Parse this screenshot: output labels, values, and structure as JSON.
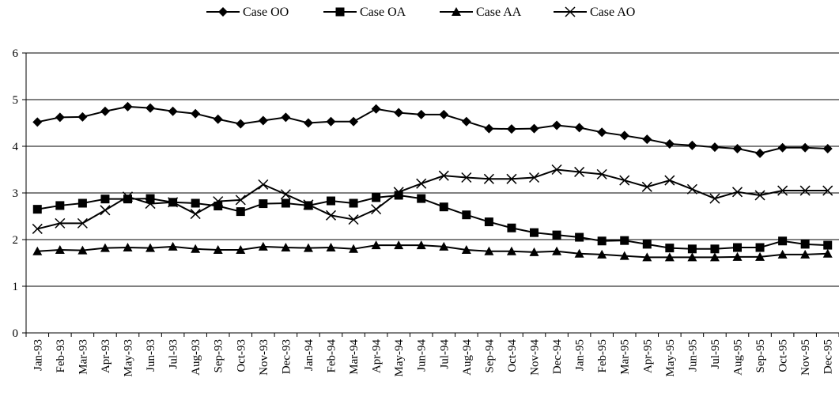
{
  "chart_data": {
    "type": "line",
    "title": "",
    "xlabel": "",
    "ylabel": "",
    "ylim": [
      0,
      6
    ],
    "yticks": [
      0,
      1,
      2,
      3,
      4,
      5,
      6
    ],
    "grid": "horizontal",
    "legend_position": "top-center",
    "categories": [
      "Jan-93",
      "Feb-93",
      "Mar-93",
      "Apr-93",
      "May-93",
      "Jun-93",
      "Jul-93",
      "Aug-93",
      "Sep-93",
      "Oct-93",
      "Nov-93",
      "Dec-93",
      "Jan-94",
      "Feb-94",
      "Mar-94",
      "Apr-94",
      "May-94",
      "Jun-94",
      "Jul-94",
      "Aug-94",
      "Sep-94",
      "Oct-94",
      "Nov-94",
      "Dec-94",
      "Jan-95",
      "Feb-95",
      "Mar-95",
      "Apr-95",
      "May-95",
      "Jun-95",
      "Jul-95",
      "Aug-95",
      "Sep-95",
      "Oct-95",
      "Nov-95",
      "Dec-95"
    ],
    "series": [
      {
        "name": "Case OO",
        "marker": "diamond",
        "color": "#000000",
        "values": [
          4.52,
          4.62,
          4.63,
          4.75,
          4.85,
          4.82,
          4.75,
          4.7,
          4.58,
          4.48,
          4.55,
          4.62,
          4.5,
          4.53,
          4.53,
          4.8,
          4.72,
          4.68,
          4.68,
          4.53,
          4.38,
          4.37,
          4.38,
          4.45,
          4.4,
          4.3,
          4.23,
          4.15,
          4.05,
          4.02,
          3.98,
          3.95,
          3.85,
          3.97,
          3.97,
          3.95
        ]
      },
      {
        "name": "Case OA",
        "marker": "square",
        "color": "#000000",
        "values": [
          2.65,
          2.73,
          2.78,
          2.87,
          2.87,
          2.88,
          2.8,
          2.78,
          2.72,
          2.6,
          2.77,
          2.78,
          2.73,
          2.83,
          2.78,
          2.9,
          2.95,
          2.88,
          2.7,
          2.53,
          2.38,
          2.25,
          2.15,
          2.1,
          2.05,
          1.97,
          1.98,
          1.9,
          1.82,
          1.8,
          1.8,
          1.83,
          1.83,
          1.97,
          1.9,
          1.88
        ]
      },
      {
        "name": "Case AA",
        "marker": "triangle",
        "color": "#000000",
        "values": [
          1.75,
          1.78,
          1.77,
          1.82,
          1.83,
          1.82,
          1.85,
          1.8,
          1.78,
          1.78,
          1.85,
          1.83,
          1.82,
          1.83,
          1.8,
          1.88,
          1.88,
          1.88,
          1.85,
          1.78,
          1.75,
          1.75,
          1.73,
          1.75,
          1.7,
          1.68,
          1.65,
          1.62,
          1.62,
          1.62,
          1.62,
          1.63,
          1.63,
          1.68,
          1.68,
          1.7
        ]
      },
      {
        "name": "Case AO",
        "marker": "cross",
        "color": "#000000",
        "values": [
          2.23,
          2.35,
          2.35,
          2.63,
          2.92,
          2.77,
          2.8,
          2.55,
          2.82,
          2.85,
          3.18,
          2.97,
          2.75,
          2.52,
          2.43,
          2.65,
          3.02,
          3.2,
          3.37,
          3.33,
          3.3,
          3.3,
          3.33,
          3.5,
          3.45,
          3.4,
          3.27,
          3.13,
          3.27,
          3.08,
          2.88,
          3.02,
          2.95,
          3.05,
          3.05,
          3.05
        ]
      }
    ]
  }
}
